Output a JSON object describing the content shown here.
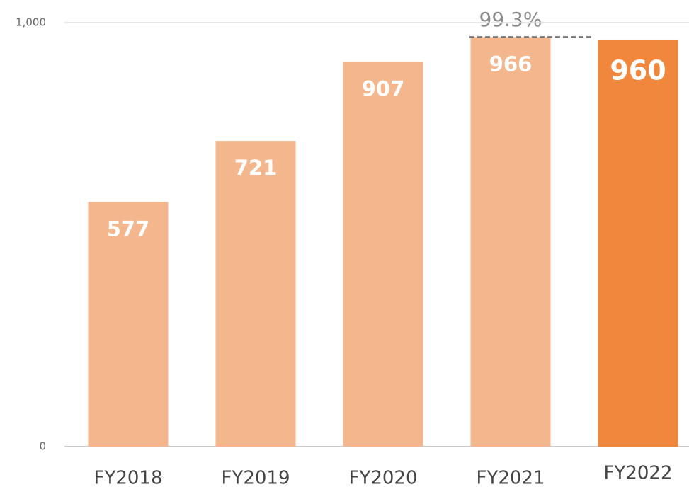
{
  "chart_data": {
    "type": "bar",
    "categories": [
      "FY2018",
      "FY2019",
      "FY2020",
      "FY2021",
      "FY2022"
    ],
    "values": [
      577,
      721,
      907,
      966,
      960
    ],
    "colors": [
      "#f4b68c",
      "#f4b68c",
      "#f4b68c",
      "#f4b68c",
      "#f0873d"
    ],
    "ylim": [
      0,
      1000
    ],
    "yticks": [
      0,
      {
        "value": 1000,
        "label": "1,000"
      }
    ],
    "grid": true,
    "annotation": "99.3%"
  }
}
